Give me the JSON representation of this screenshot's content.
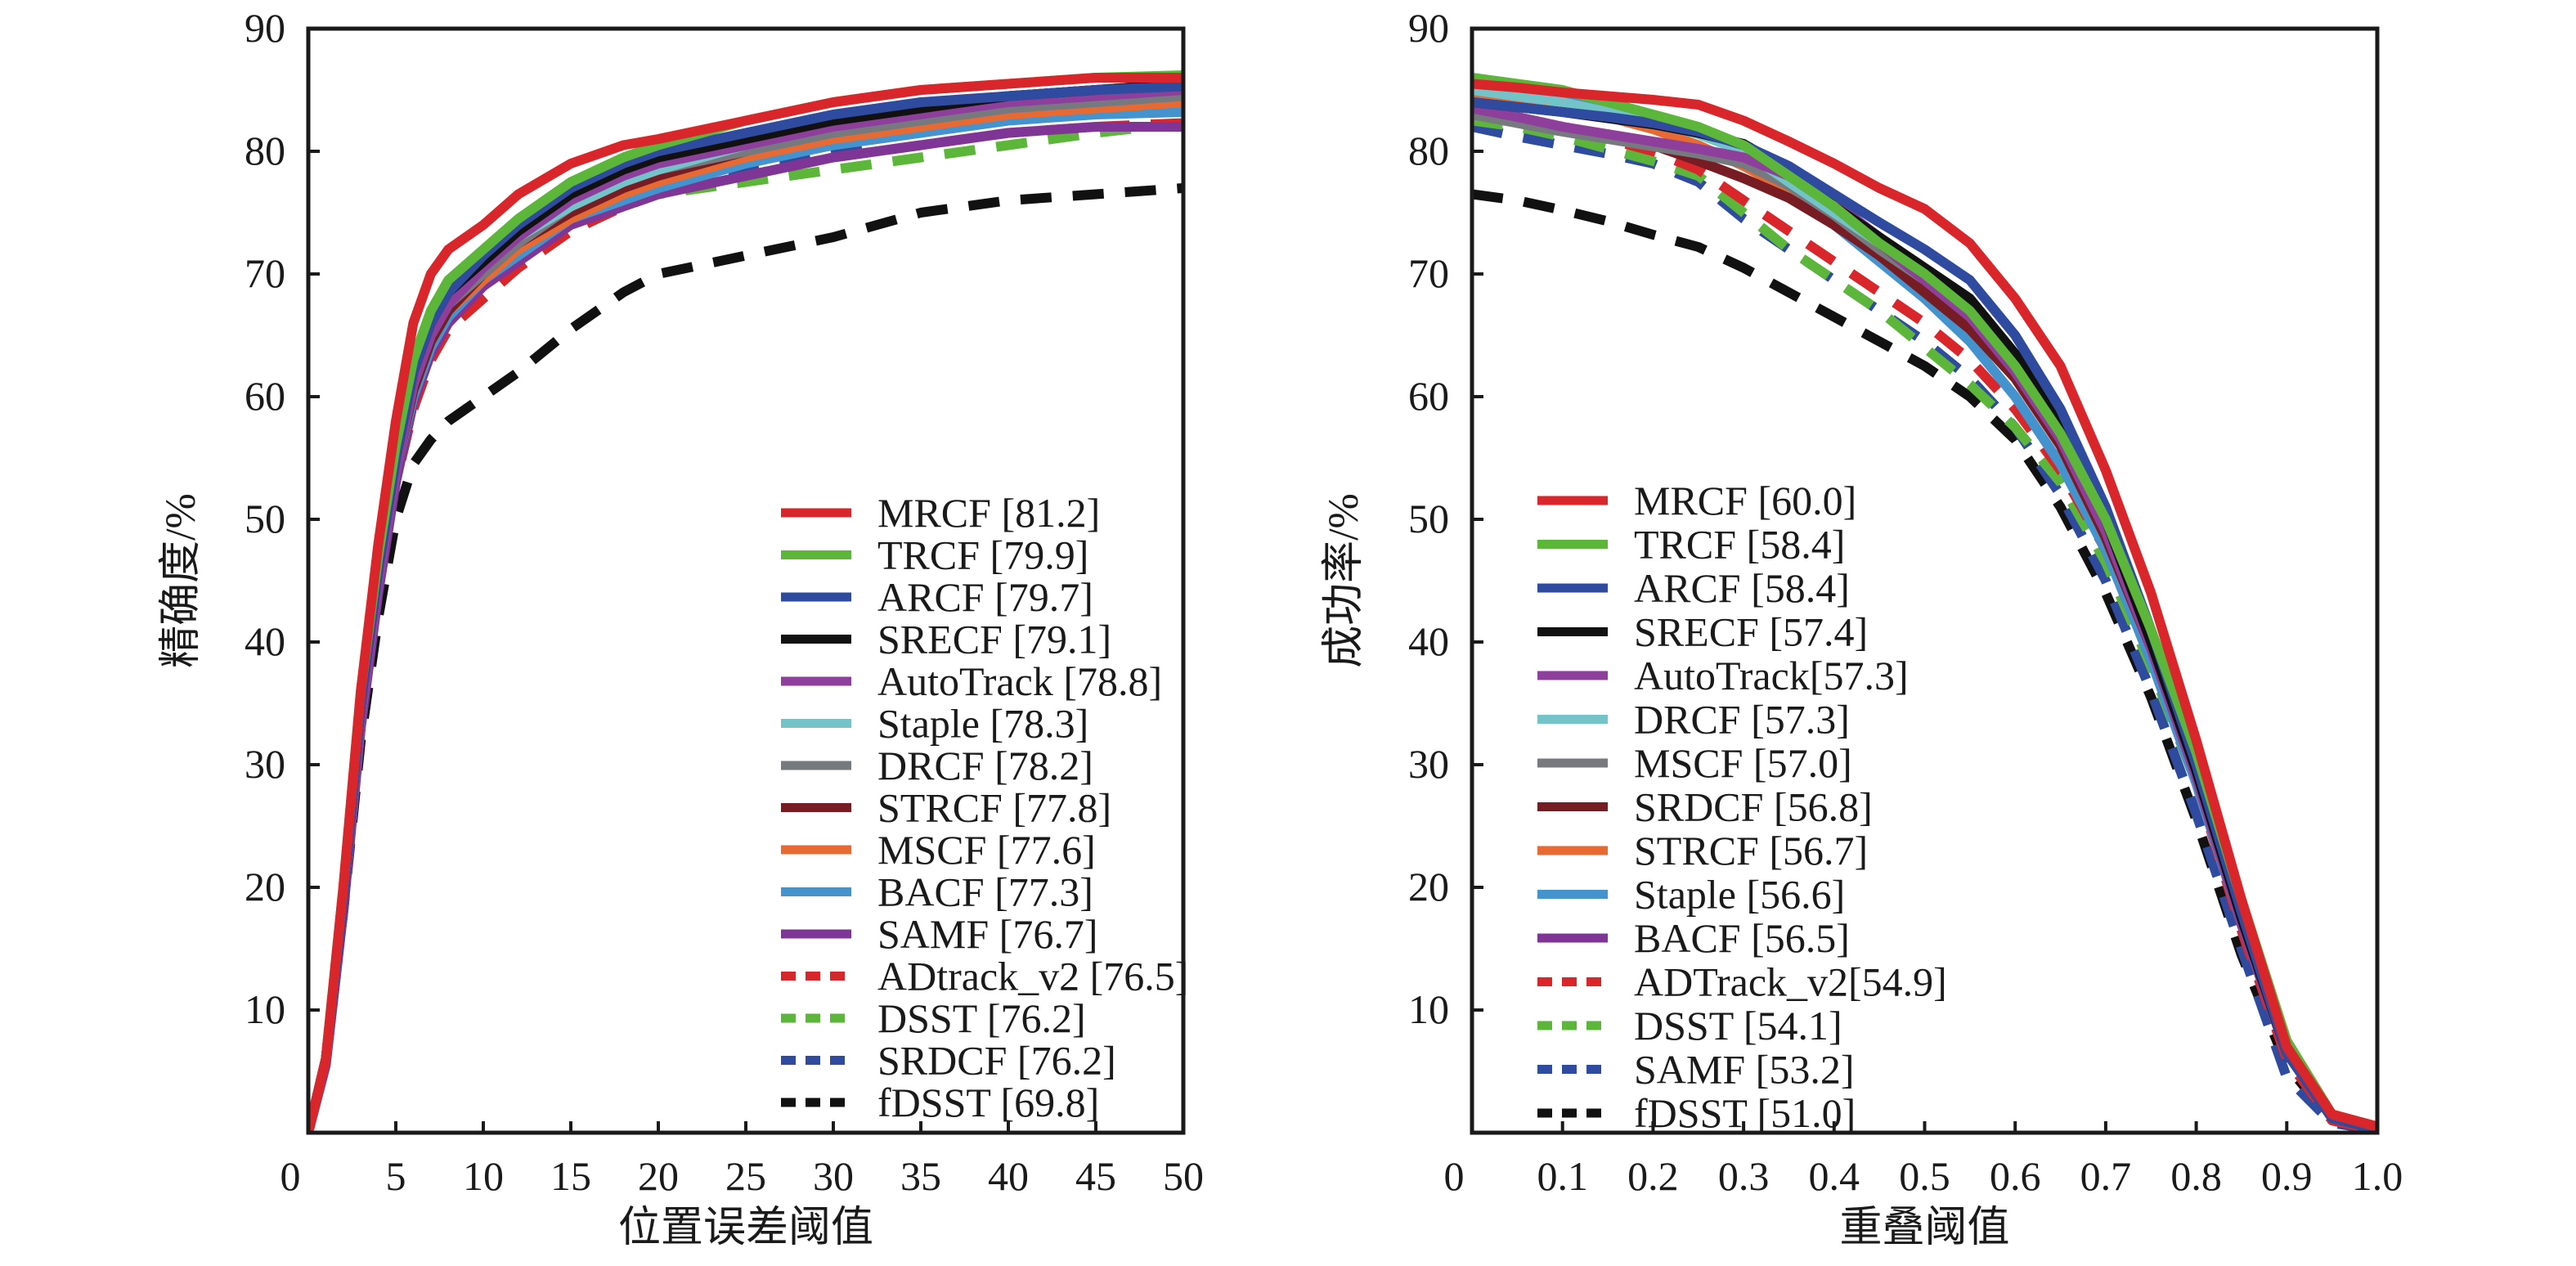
{
  "chart_data": [
    {
      "type": "line",
      "title": "",
      "xlabel": "位置误差阈值",
      "ylabel": "精确度/%",
      "xlim": [
        0,
        50
      ],
      "ylim": [
        0,
        90
      ],
      "xticks": [
        0,
        5,
        10,
        15,
        20,
        25,
        30,
        35,
        40,
        45,
        50
      ],
      "xtick_labels": [
        "0",
        "5",
        "10",
        "15",
        "20",
        "25",
        "30",
        "35",
        "40",
        "45",
        "50"
      ],
      "yticks": [
        10,
        20,
        30,
        40,
        50,
        60,
        70,
        80,
        90
      ],
      "ytick_labels": [
        "10",
        "20",
        "30",
        "40",
        "50",
        "60",
        "70",
        "80",
        "90"
      ],
      "grid": false,
      "legend_position": "lower-right",
      "x": [
        0,
        1,
        2,
        3,
        4,
        5,
        6,
        7,
        8,
        10,
        12,
        15,
        18,
        20,
        25,
        30,
        35,
        40,
        45,
        50
      ],
      "series": [
        {
          "name": "MRCF",
          "score": "81.2",
          "label": "MRCF [81.2]",
          "color": "#d9262b",
          "dashed": false,
          "values": [
            0,
            6,
            20,
            36,
            48,
            58,
            66,
            70,
            72,
            74,
            76.5,
            79,
            80.5,
            81,
            82.5,
            84,
            85,
            85.5,
            86,
            86
          ]
        },
        {
          "name": "TRCF",
          "score": "79.9",
          "label": "TRCF [79.9]",
          "color": "#5bb63a",
          "dashed": false,
          "values": [
            0,
            6,
            20,
            36,
            47,
            56,
            63,
            67,
            69.5,
            72,
            74.5,
            77.5,
            79.5,
            80.5,
            82.5,
            84,
            85,
            85.5,
            86,
            86.2
          ]
        },
        {
          "name": "ARCF",
          "score": "79.7",
          "label": "ARCF [79.7]",
          "color": "#2e4ba0",
          "dashed": false,
          "values": [
            0,
            6,
            19,
            35,
            46,
            55,
            62,
            66,
            68.5,
            71.5,
            74,
            77,
            79,
            80,
            81.5,
            83,
            84,
            84.5,
            85,
            85.3
          ]
        },
        {
          "name": "SRECF",
          "score": "79.1",
          "label": "SRECF [79.1]",
          "color": "#111111",
          "dashed": false,
          "values": [
            0,
            6,
            19,
            35,
            46,
            55,
            62,
            66,
            68.5,
            71,
            73.5,
            76.5,
            78.5,
            79.5,
            81,
            82.5,
            83.5,
            84.5,
            85,
            85.5
          ]
        },
        {
          "name": "AutoTrack",
          "score": "78.8",
          "label": "AutoTrack [78.8]",
          "color": "#8e3f9c",
          "dashed": false,
          "values": [
            0,
            6,
            19,
            34,
            45,
            54,
            61,
            65,
            67.5,
            70.5,
            73,
            76,
            78,
            79,
            80.5,
            82,
            83,
            84,
            84.5,
            85
          ]
        },
        {
          "name": "Staple",
          "score": "78.3",
          "label": "Staple [78.3]",
          "color": "#72c4c8",
          "dashed": false,
          "values": [
            0,
            6,
            19,
            34,
            45,
            54,
            61,
            65,
            67.5,
            70.5,
            73,
            75.5,
            77.5,
            78.5,
            80.5,
            82,
            83,
            84,
            85,
            85.5
          ]
        },
        {
          "name": "DRCF",
          "score": "78.2",
          "label": "DRCF [78.2]",
          "color": "#767a7e",
          "dashed": false,
          "values": [
            0,
            6,
            19,
            34,
            45,
            54,
            61,
            65,
            67.5,
            70,
            72.5,
            75.5,
            77.5,
            78.5,
            80,
            81.5,
            82.5,
            83.5,
            84,
            84.5
          ]
        },
        {
          "name": "STRCF",
          "score": "77.8",
          "label": "STRCF [77.8]",
          "color": "#761c22",
          "dashed": false,
          "values": [
            0,
            6,
            19,
            34,
            45,
            54,
            60.5,
            64.5,
            67,
            70,
            72.5,
            75,
            77,
            78,
            80,
            82,
            83.5,
            84.5,
            85,
            85.5
          ]
        },
        {
          "name": "MSCF",
          "score": "77.6",
          "label": "MSCF [77.6]",
          "color": "#e76a32",
          "dashed": false,
          "values": [
            0,
            6,
            19,
            34,
            45,
            54,
            60.5,
            64.5,
            67,
            69.5,
            72,
            74.5,
            76.5,
            77.5,
            79.5,
            81,
            82,
            83,
            83.5,
            84
          ]
        },
        {
          "name": "BACF",
          "score": "77.3",
          "label": "BACF [77.3]",
          "color": "#4393cf",
          "dashed": false,
          "values": [
            0,
            6,
            19,
            34,
            45,
            54,
            60,
            64,
            66.5,
            69.5,
            71.5,
            74.5,
            76,
            77,
            79,
            80.5,
            81.5,
            82.5,
            83,
            83.2
          ]
        },
        {
          "name": "SAMF",
          "score": "76.7",
          "label": "SAMF [76.7]",
          "color": "#7f3595",
          "dashed": false,
          "values": [
            0,
            5.5,
            18,
            33,
            44,
            53,
            59.5,
            63.5,
            66,
            69,
            71,
            74,
            75.5,
            76.5,
            78,
            79.5,
            80.5,
            81.5,
            82,
            82
          ]
        },
        {
          "name": "ADtrack_v2",
          "score": "76.5",
          "label": "ADtrack_v2 [76.5]",
          "color": "#d9262b",
          "dashed": true,
          "values": [
            0,
            6,
            19,
            34,
            44.5,
            53,
            59,
            63,
            65.5,
            68,
            70.5,
            73.5,
            75.5,
            76.5,
            78,
            79.5,
            80.5,
            81.5,
            82,
            82.3
          ]
        },
        {
          "name": "DSST",
          "score": "76.2",
          "label": "DSST [76.2]",
          "color": "#5bb63a",
          "dashed": true,
          "values": [
            0,
            6,
            19,
            34,
            44.5,
            53,
            59,
            63,
            65.5,
            68,
            70.5,
            73.5,
            75.5,
            76.5,
            77.5,
            78.5,
            79.5,
            80.5,
            81.5,
            82.3
          ]
        },
        {
          "name": "SRDCF",
          "score": "76.2",
          "label": "SRDCF [76.2]",
          "color": "#2e4ba0",
          "dashed": true,
          "values": [
            0,
            6,
            19,
            34,
            45,
            54,
            60,
            64,
            66,
            69,
            71.5,
            74,
            76,
            77,
            78.5,
            80,
            82,
            83,
            84,
            84.5
          ]
        },
        {
          "name": "fDSST",
          "score": "69.8",
          "label": "fDSST [69.8]",
          "color": "#111111",
          "dashed": true,
          "values": [
            0,
            6,
            18,
            32,
            42,
            50,
            54.5,
            56.5,
            58,
            60,
            62,
            65.5,
            68.5,
            70,
            71.5,
            73,
            75,
            76,
            76.5,
            77
          ]
        }
      ]
    },
    {
      "type": "line",
      "title": "",
      "xlabel": "重叠阈值",
      "ylabel": "成功率/%",
      "xlim": [
        0,
        1.0
      ],
      "ylim": [
        0,
        90
      ],
      "xticks": [
        0,
        0.1,
        0.2,
        0.3,
        0.4,
        0.5,
        0.6,
        0.7,
        0.8,
        0.9,
        1.0
      ],
      "xtick_labels": [
        "0",
        "0.1",
        "0.2",
        "0.3",
        "0.4",
        "0.5",
        "0.6",
        "0.7",
        "0.8",
        "0.9",
        "1.0"
      ],
      "yticks": [
        10,
        20,
        30,
        40,
        50,
        60,
        70,
        80,
        90
      ],
      "ytick_labels": [
        "10",
        "20",
        "30",
        "40",
        "50",
        "60",
        "70",
        "80",
        "90"
      ],
      "grid": false,
      "legend_position": "lower-left",
      "x": [
        0,
        0.05,
        0.1,
        0.15,
        0.2,
        0.25,
        0.3,
        0.35,
        0.4,
        0.45,
        0.5,
        0.55,
        0.6,
        0.65,
        0.7,
        0.75,
        0.8,
        0.85,
        0.9,
        0.95,
        1.0
      ],
      "series": [
        {
          "name": "MRCF",
          "score": "60.0",
          "label": "MRCF [60.0]",
          "color": "#d9262b",
          "dashed": false,
          "values": [
            85.5,
            85.2,
            84.8,
            84.5,
            84.2,
            83.8,
            82.5,
            80.8,
            79,
            77,
            75.3,
            72.5,
            68,
            62.5,
            54,
            44,
            32,
            19,
            7,
            1.5,
            0.5
          ]
        },
        {
          "name": "TRCF",
          "score": "58.4",
          "label": "TRCF [58.4]",
          "color": "#5bb63a",
          "dashed": false,
          "values": [
            86,
            85.5,
            85,
            84,
            83,
            82,
            80.5,
            78,
            75.5,
            72.5,
            70,
            67,
            62.5,
            57,
            50,
            41,
            31,
            19,
            7.5,
            1.5,
            0.5
          ]
        },
        {
          "name": "ARCF",
          "score": "58.4",
          "label": "ARCF [58.4]",
          "color": "#2e4ba0",
          "dashed": false,
          "values": [
            84,
            83.6,
            83.2,
            82.8,
            82.3,
            81.6,
            80.5,
            78.8,
            76.5,
            74.2,
            72,
            69.5,
            65,
            59,
            51,
            41,
            30,
            18,
            6.5,
            1.2,
            0.3
          ]
        },
        {
          "name": "SRECF",
          "score": "57.4",
          "label": "SRECF [57.4]",
          "color": "#111111",
          "dashed": false,
          "values": [
            84,
            83.6,
            83.2,
            82.7,
            82.2,
            81.5,
            80.6,
            78.5,
            75.5,
            73,
            70.5,
            68,
            63.5,
            57.5,
            50,
            40,
            29.5,
            17.5,
            6.5,
            1.2,
            0.3
          ]
        },
        {
          "name": "AutoTrack",
          "score": "57.3",
          "label": "AutoTrack[57.3]",
          "color": "#8e3f9c",
          "dashed": false,
          "values": [
            83.5,
            82.8,
            82,
            81.4,
            80.8,
            80.2,
            79.5,
            78,
            75.5,
            72.5,
            69.5,
            66.5,
            62,
            56.5,
            49,
            39.5,
            29,
            17,
            6.5,
            1.2,
            0.3
          ]
        },
        {
          "name": "DRCF",
          "score": "57.3",
          "label": "DRCF [57.3]",
          "color": "#72c4c8",
          "dashed": false,
          "values": [
            85,
            84.5,
            84,
            83.2,
            82.4,
            81.4,
            80,
            77.5,
            75,
            72.5,
            70,
            67,
            62.5,
            57,
            49.5,
            40,
            29.5,
            17.5,
            6.5,
            1.2,
            0.3
          ]
        },
        {
          "name": "MSCF",
          "score": "57.0",
          "label": "MSCF [57.0]",
          "color": "#767a7e",
          "dashed": false,
          "values": [
            83,
            82.3,
            81.6,
            81,
            80.4,
            79.8,
            79,
            77.2,
            74.8,
            72,
            69.5,
            66.5,
            62.5,
            57,
            49.5,
            40,
            29.5,
            17.5,
            6.5,
            1.2,
            0.3
          ]
        },
        {
          "name": "SRDCF",
          "score": "56.8",
          "label": "SRDCF [56.8]",
          "color": "#761c22",
          "dashed": false,
          "values": [
            83.5,
            82.8,
            82,
            81.3,
            80.5,
            79.2,
            77.8,
            76.2,
            74,
            71.5,
            68.5,
            65.5,
            61.5,
            56,
            48.5,
            39.5,
            29,
            17,
            6.5,
            1.2,
            0.3
          ]
        },
        {
          "name": "STRCF",
          "score": "56.7",
          "label": "STRCF [56.7]",
          "color": "#e76a32",
          "dashed": false,
          "values": [
            84.5,
            84,
            83.5,
            82.8,
            81.8,
            80.5,
            78.8,
            76.8,
            74.5,
            72,
            69,
            66,
            61.5,
            56,
            48.5,
            39.5,
            29,
            17,
            6.5,
            1.2,
            0.3
          ]
        },
        {
          "name": "Staple",
          "score": "56.6",
          "label": "Staple [56.6]",
          "color": "#4393cf",
          "dashed": false,
          "values": [
            85,
            84.6,
            84.2,
            83.5,
            82.8,
            81.8,
            80,
            77,
            74,
            71,
            68,
            64.5,
            60,
            54.5,
            47.5,
            38.5,
            28.5,
            17,
            6.5,
            1.2,
            0.3
          ]
        },
        {
          "name": "BACF",
          "score": "56.5",
          "label": "BACF [56.5]",
          "color": "#7f3595",
          "dashed": false,
          "values": [
            83,
            82.4,
            81.8,
            81.2,
            80.6,
            80,
            79.3,
            78,
            75.8,
            73,
            70,
            67,
            62.5,
            56.5,
            49,
            39.5,
            29,
            17,
            6.5,
            1.2,
            0.3
          ]
        },
        {
          "name": "ADTrack_v2",
          "score": "54.9",
          "label": "ADTrack_v2[54.9]",
          "color": "#d9262b",
          "dashed": true,
          "values": [
            83,
            82.5,
            82,
            81,
            80,
            78.5,
            76,
            73.5,
            71,
            68.5,
            66,
            63,
            59,
            54,
            47.5,
            38.5,
            28.5,
            16.5,
            6,
            1,
            0.2
          ]
        },
        {
          "name": "DSST",
          "score": "54.1",
          "label": "DSST [54.1]",
          "color": "#5bb63a",
          "dashed": true,
          "values": [
            82.5,
            82,
            81.2,
            80.2,
            79.2,
            78,
            75,
            72,
            69.5,
            67,
            64,
            61,
            57.5,
            53,
            46.5,
            38,
            28.5,
            17,
            6.5,
            1.2,
            0.3
          ]
        },
        {
          "name": "SAMF",
          "score": "53.2",
          "label": "SAMF [53.2]",
          "color": "#2e4ba0",
          "dashed": true,
          "values": [
            82,
            81.2,
            80.5,
            79.8,
            79,
            77.5,
            74.5,
            72,
            69.5,
            67,
            64.5,
            61.5,
            57.5,
            52,
            45,
            36,
            26,
            15,
            4.5,
            0.8,
            0.2
          ]
        },
        {
          "name": "fDSST",
          "score": "51.0",
          "label": "fDSST [51.0]",
          "color": "#111111",
          "dashed": true,
          "values": [
            76.5,
            76,
            75.2,
            74.3,
            73.2,
            72.2,
            70.5,
            68.5,
            66.5,
            64.5,
            62.5,
            60,
            56.5,
            51,
            44,
            35.5,
            25.5,
            14.5,
            5.5,
            1,
            0.2
          ]
        }
      ]
    }
  ]
}
